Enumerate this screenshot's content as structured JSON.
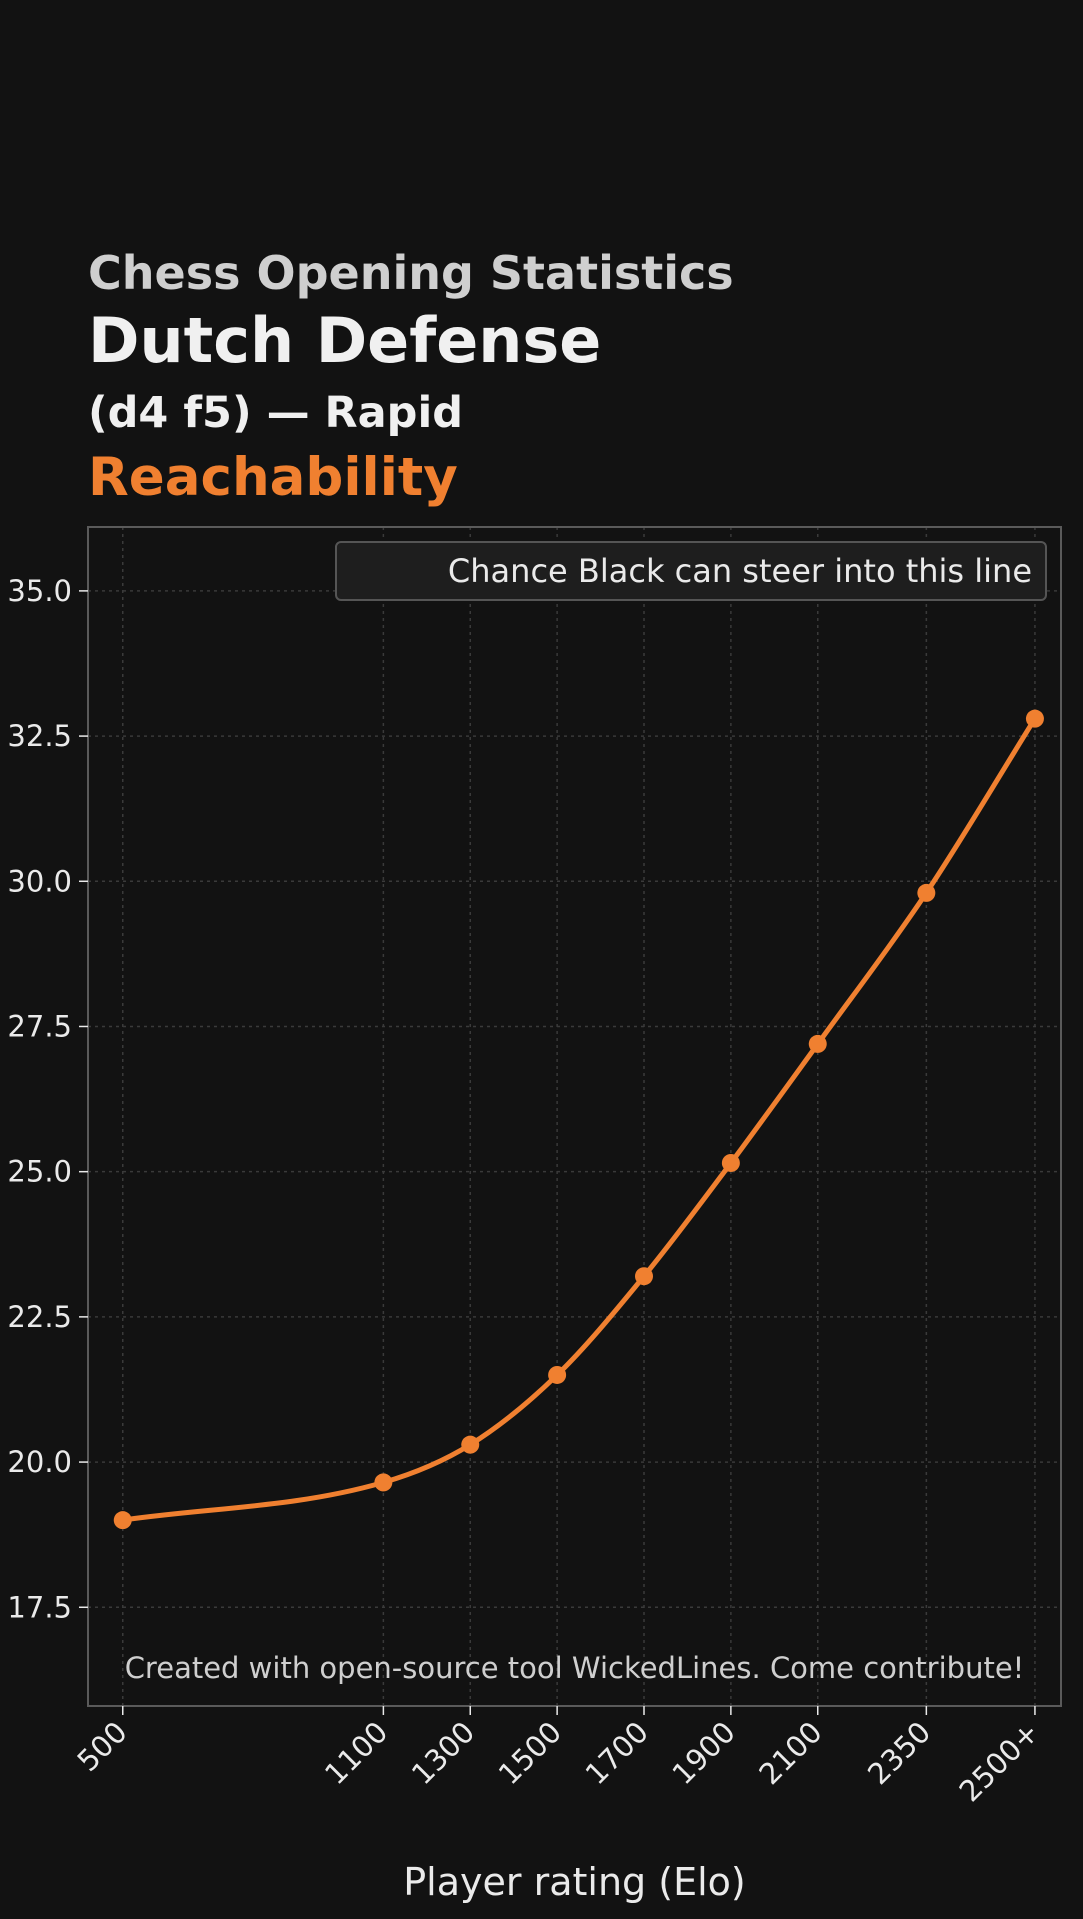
{
  "header": {
    "supertitle": "Chess Opening Statistics",
    "title": "Dutch Defense",
    "subtitle": "(d4 f5) — Rapid",
    "metric": "Reachability"
  },
  "colors": {
    "background": "#121212",
    "accent": "#f08030",
    "grid": "#3a3a3a",
    "frame": "#5a5a5a",
    "text": "#eaeaea"
  },
  "credit": "Created with open-source tool WickedLines. Come contribute!",
  "chart_data": {
    "type": "line",
    "x_positions": [
      500,
      1100,
      1300,
      1500,
      1700,
      1900,
      2100,
      2350,
      2600
    ],
    "categories": [
      "500",
      "1100",
      "1300",
      "1500",
      "1700",
      "1900",
      "2100",
      "2350",
      "2500+"
    ],
    "series": [
      {
        "name": "Chance Black can steer into this line",
        "values": [
          19.0,
          19.65,
          20.3,
          21.5,
          23.2,
          25.15,
          27.2,
          29.8,
          32.8
        ]
      }
    ],
    "title": "Dutch Defense",
    "xlabel": "Player rating (Elo)",
    "ylabel": "",
    "ylim": [
      15.8,
      36.1
    ],
    "yticks": [
      "17.5",
      "20.0",
      "22.5",
      "25.0",
      "27.5",
      "30.0",
      "32.5",
      "35.0"
    ],
    "grid": true,
    "legend_position": "top-right",
    "smooth": true
  }
}
